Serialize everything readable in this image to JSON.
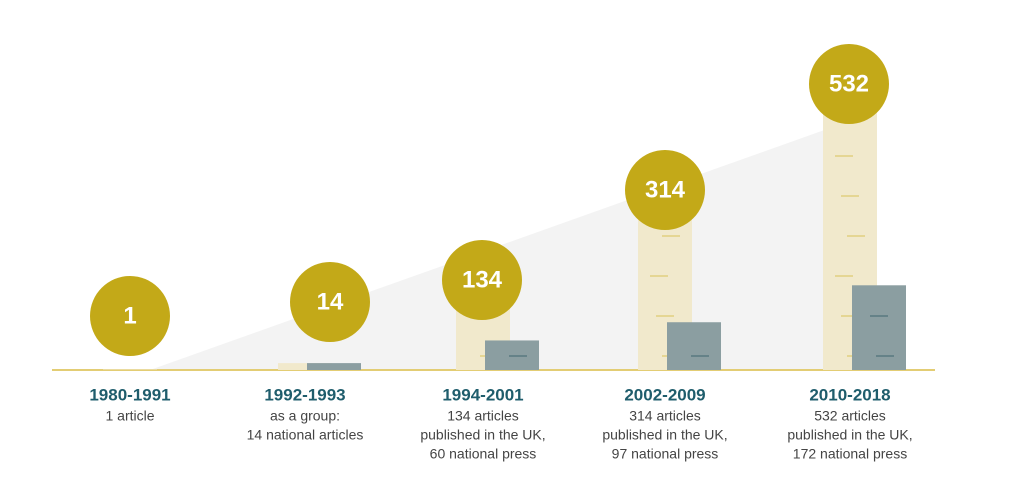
{
  "chart_data": {
    "type": "bar",
    "categories": [
      "1980-1991",
      "1992-1993",
      "1994-2001",
      "2002-2009",
      "2010-2018"
    ],
    "series": [
      {
        "color": "#f1e9cc",
        "values": [
          1,
          14,
          134,
          314,
          532
        ]
      },
      {
        "color": "#8b9ea1",
        "values": [
          null,
          14,
          60,
          97,
          172
        ]
      }
    ],
    "circle_color": "#c3a918",
    "descriptions": [
      [
        "1 article"
      ],
      [
        "as a group:",
        "14 national articles"
      ],
      [
        "134 articles",
        "published in the UK,",
        "60 national press"
      ],
      [
        "314 articles",
        "published in the UK,",
        "97 national press"
      ],
      [
        "532 articles",
        "published in the UK,",
        "172 national press"
      ]
    ]
  }
}
